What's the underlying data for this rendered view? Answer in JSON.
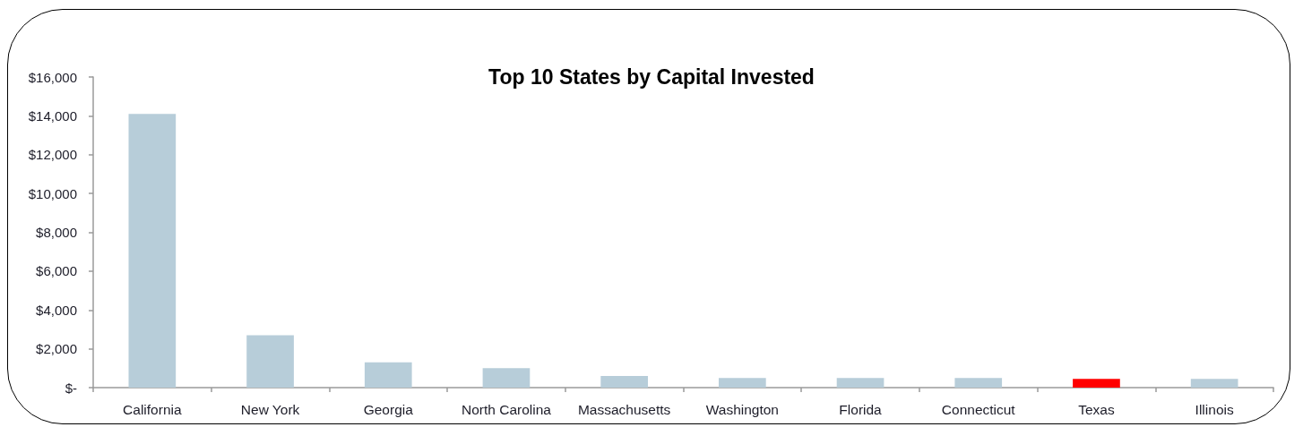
{
  "chart_data": {
    "type": "bar",
    "title": "Top 10 States by Capital Invested",
    "categories": [
      "California",
      "New York",
      "Georgia",
      "North Carolina",
      "Massachusetts",
      "Washington",
      "Florida",
      "Connecticut",
      "Texas",
      "Illinois"
    ],
    "values": [
      14100,
      2700,
      1300,
      1000,
      600,
      500,
      500,
      500,
      450,
      450
    ],
    "colors": [
      "#b7cdd9",
      "#b7cdd9",
      "#b7cdd9",
      "#b7cdd9",
      "#b7cdd9",
      "#b7cdd9",
      "#b7cdd9",
      "#b7cdd9",
      "#ff0000",
      "#b7cdd9"
    ],
    "ylim": [
      0,
      16000
    ],
    "yticks": [
      {
        "value": 0,
        "label": "$-"
      },
      {
        "value": 2000,
        "label": "$2,000"
      },
      {
        "value": 4000,
        "label": "$4,000"
      },
      {
        "value": 6000,
        "label": "$6,000"
      },
      {
        "value": 8000,
        "label": "$8,000"
      },
      {
        "value": 10000,
        "label": "$10,000"
      },
      {
        "value": 12000,
        "label": "$12,000"
      },
      {
        "value": 14000,
        "label": "$14,000"
      },
      {
        "value": 16000,
        "label": "$16,000"
      }
    ]
  }
}
